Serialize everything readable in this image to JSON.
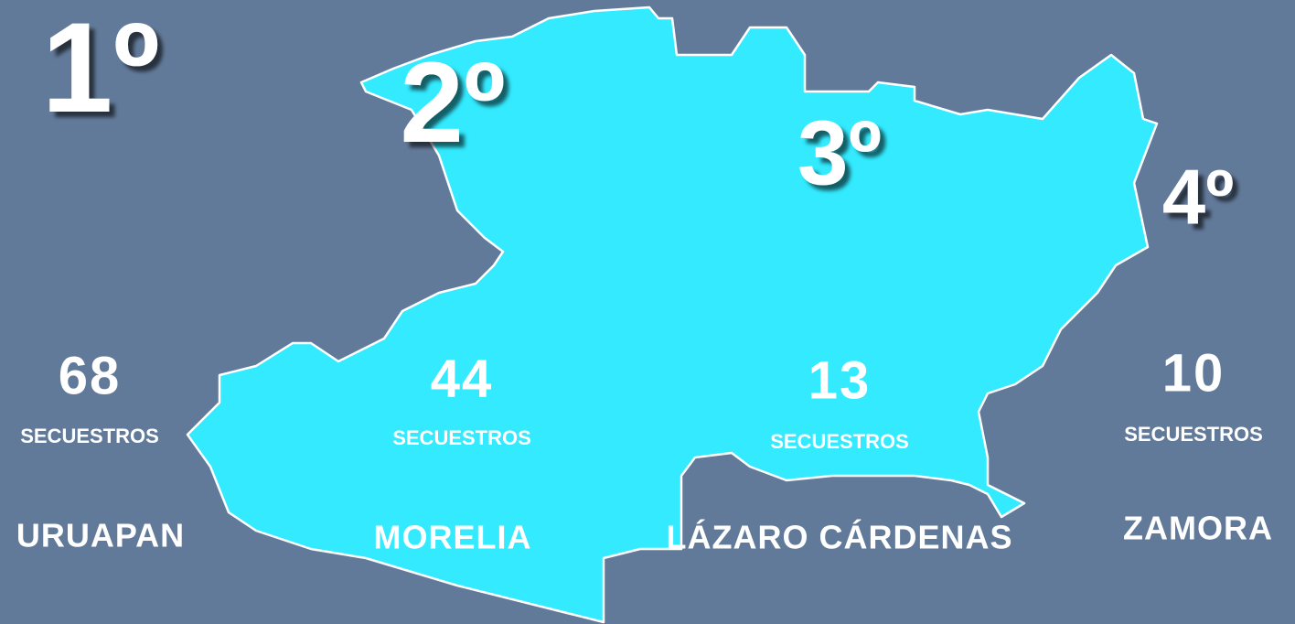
{
  "ranking": [
    {
      "rank": "1º",
      "count": 68,
      "unit": "SECUESTROS",
      "city": "URUAPAN"
    },
    {
      "rank": "2º",
      "count": 44,
      "unit": "SECUESTROS",
      "city": "MORELIA"
    },
    {
      "rank": "3º",
      "count": 13,
      "unit": "SECUESTROS",
      "city": "LÁZARO CÁRDENAS"
    },
    {
      "rank": "4º",
      "count": 10,
      "unit": "SECUESTROS",
      "city": "ZAMORA"
    }
  ]
}
